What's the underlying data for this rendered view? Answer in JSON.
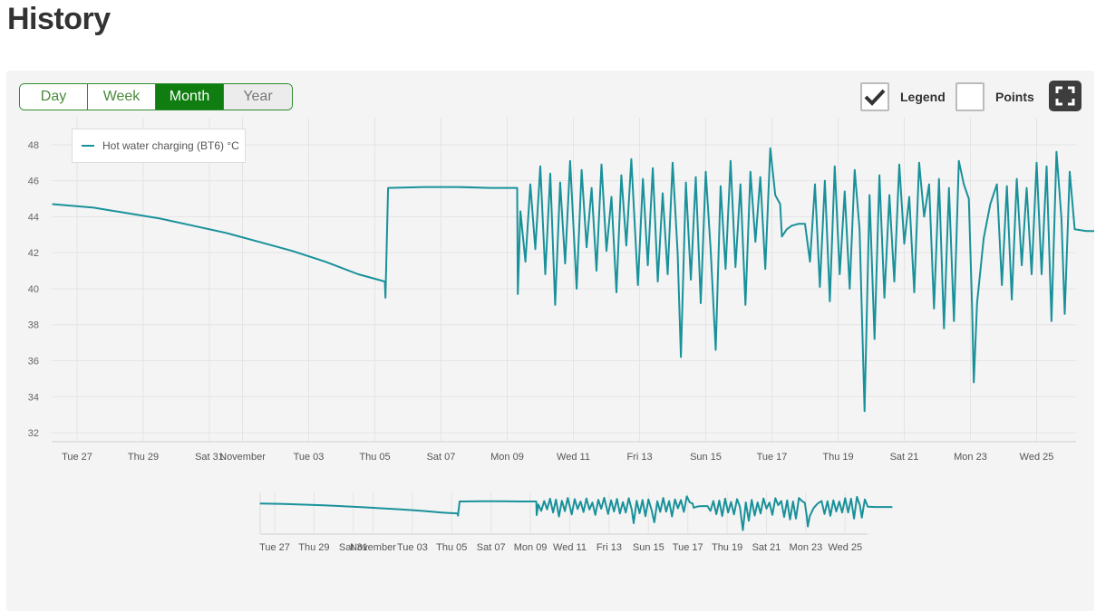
{
  "page": {
    "title": "History"
  },
  "controls": {
    "ranges": [
      {
        "label": "Day",
        "state": "normal"
      },
      {
        "label": "Week",
        "state": "normal"
      },
      {
        "label": "Month",
        "state": "active"
      },
      {
        "label": "Year",
        "state": "muted"
      }
    ],
    "legend_toggle": {
      "label": "Legend",
      "checked": true
    },
    "points_toggle": {
      "label": "Points",
      "checked": false
    },
    "fullscreen_icon": "expand-icon"
  },
  "colors": {
    "series": "#19919a",
    "active_range": "#0f7d0f",
    "grid": "#e4e4e4"
  },
  "chart_data": {
    "type": "line",
    "legend_placement": "top-left",
    "grid": true,
    "ylim": [
      31.5,
      49.5
    ],
    "yticks": [
      32,
      34,
      36,
      38,
      40,
      42,
      44,
      46,
      48
    ],
    "x_start": "Tue 27",
    "xticks": [
      {
        "day": 0,
        "label": "Tue 27"
      },
      {
        "day": 2,
        "label": "Thu 29"
      },
      {
        "day": 4,
        "label": "Sat 31"
      },
      {
        "day": 5,
        "label": "November"
      },
      {
        "day": 7,
        "label": "Tue 03"
      },
      {
        "day": 9,
        "label": "Thu 05"
      },
      {
        "day": 11,
        "label": "Sat 07"
      },
      {
        "day": 13,
        "label": "Mon 09"
      },
      {
        "day": 15,
        "label": "Wed 11"
      },
      {
        "day": 17,
        "label": "Fri 13"
      },
      {
        "day": 19,
        "label": "Sun 15"
      },
      {
        "day": 21,
        "label": "Tue 17"
      },
      {
        "day": 23,
        "label": "Thu 19"
      },
      {
        "day": 25,
        "label": "Sat 21"
      },
      {
        "day": 27,
        "label": "Mon 23"
      },
      {
        "day": 29,
        "label": "Wed 25"
      }
    ],
    "series": [
      {
        "name": "Hot water charging (BT6) °C",
        "points": [
          [
            -0.75,
            44.7
          ],
          [
            0.5,
            44.5
          ],
          [
            1.5,
            44.2
          ],
          [
            2.5,
            43.9
          ],
          [
            3.5,
            43.5
          ],
          [
            4.5,
            43.1
          ],
          [
            5.5,
            42.6
          ],
          [
            6.5,
            42.1
          ],
          [
            7.5,
            41.5
          ],
          [
            8.5,
            40.8
          ],
          [
            9.3,
            40.4
          ],
          [
            9.32,
            39.5
          ],
          [
            9.4,
            45.6
          ],
          [
            10.5,
            45.65
          ],
          [
            11.5,
            45.65
          ],
          [
            12.5,
            45.6
          ],
          [
            13.3,
            45.6
          ],
          [
            13.32,
            39.7
          ],
          [
            13.4,
            44.3
          ],
          [
            13.55,
            41.5
          ],
          [
            13.7,
            45.8
          ],
          [
            13.85,
            42.2
          ],
          [
            14.0,
            46.8
          ],
          [
            14.15,
            40.8
          ],
          [
            14.3,
            46.4
          ],
          [
            14.45,
            39.1
          ],
          [
            14.6,
            45.9
          ],
          [
            14.75,
            41.4
          ],
          [
            14.9,
            47.1
          ],
          [
            15.1,
            40.0
          ],
          [
            15.25,
            46.6
          ],
          [
            15.4,
            42.3
          ],
          [
            15.55,
            45.6
          ],
          [
            15.7,
            41.0
          ],
          [
            15.85,
            46.9
          ],
          [
            16.0,
            42.1
          ],
          [
            16.15,
            45.1
          ],
          [
            16.3,
            39.8
          ],
          [
            16.45,
            46.3
          ],
          [
            16.6,
            42.4
          ],
          [
            16.75,
            47.2
          ],
          [
            16.95,
            40.2
          ],
          [
            17.1,
            46.1
          ],
          [
            17.25,
            41.3
          ],
          [
            17.4,
            46.7
          ],
          [
            17.55,
            40.4
          ],
          [
            17.7,
            45.3
          ],
          [
            17.85,
            40.8
          ],
          [
            18.0,
            47.0
          ],
          [
            18.15,
            42.0
          ],
          [
            18.25,
            36.2
          ],
          [
            18.4,
            45.9
          ],
          [
            18.55,
            40.5
          ],
          [
            18.7,
            46.2
          ],
          [
            18.85,
            39.2
          ],
          [
            19.0,
            46.5
          ],
          [
            19.15,
            42.1
          ],
          [
            19.3,
            36.6
          ],
          [
            19.45,
            45.7
          ],
          [
            19.6,
            41.1
          ],
          [
            19.75,
            47.1
          ],
          [
            19.9,
            41.2
          ],
          [
            20.05,
            45.8
          ],
          [
            20.2,
            39.1
          ],
          [
            20.35,
            46.5
          ],
          [
            20.5,
            42.6
          ],
          [
            20.65,
            46.2
          ],
          [
            20.8,
            41.1
          ],
          [
            20.95,
            47.8
          ],
          [
            21.1,
            45.2
          ],
          [
            21.25,
            44.7
          ],
          [
            21.3,
            42.9
          ],
          [
            21.45,
            43.3
          ],
          [
            21.6,
            43.5
          ],
          [
            21.8,
            43.6
          ],
          [
            22.0,
            43.6
          ],
          [
            22.15,
            41.5
          ],
          [
            22.3,
            45.8
          ],
          [
            22.45,
            40.1
          ],
          [
            22.6,
            46.0
          ],
          [
            22.75,
            39.3
          ],
          [
            22.9,
            46.8
          ],
          [
            23.05,
            40.8
          ],
          [
            23.2,
            45.4
          ],
          [
            23.35,
            40.0
          ],
          [
            23.5,
            46.6
          ],
          [
            23.65,
            43.3
          ],
          [
            23.8,
            33.2
          ],
          [
            23.95,
            45.2
          ],
          [
            24.1,
            37.2
          ],
          [
            24.25,
            46.3
          ],
          [
            24.4,
            39.5
          ],
          [
            24.55,
            45.2
          ],
          [
            24.7,
            40.4
          ],
          [
            24.85,
            46.9
          ],
          [
            25.0,
            42.5
          ],
          [
            25.15,
            45.1
          ],
          [
            25.3,
            39.8
          ],
          [
            25.45,
            47.0
          ],
          [
            25.6,
            44.0
          ],
          [
            25.75,
            45.8
          ],
          [
            25.9,
            38.9
          ],
          [
            26.05,
            46.1
          ],
          [
            26.2,
            37.8
          ],
          [
            26.35,
            45.6
          ],
          [
            26.5,
            38.2
          ],
          [
            26.65,
            47.1
          ],
          [
            26.8,
            45.8
          ],
          [
            26.95,
            45.0
          ],
          [
            27.05,
            39.0
          ],
          [
            27.1,
            34.8
          ],
          [
            27.2,
            39.2
          ],
          [
            27.4,
            42.8
          ],
          [
            27.6,
            44.7
          ],
          [
            27.8,
            45.8
          ],
          [
            27.95,
            40.2
          ],
          [
            28.1,
            45.7
          ],
          [
            28.25,
            39.4
          ],
          [
            28.4,
            46.1
          ],
          [
            28.55,
            41.3
          ],
          [
            28.7,
            45.6
          ],
          [
            28.85,
            40.8
          ],
          [
            29.0,
            47.0
          ],
          [
            29.15,
            40.8
          ],
          [
            29.3,
            46.8
          ],
          [
            29.45,
            38.2
          ],
          [
            29.6,
            47.6
          ],
          [
            29.75,
            43.9
          ],
          [
            29.85,
            38.6
          ],
          [
            30.0,
            46.5
          ],
          [
            30.15,
            43.3
          ],
          [
            30.5,
            43.2
          ],
          [
            31.4,
            43.2
          ]
        ]
      }
    ],
    "navigator": {
      "xticks": [
        {
          "day": 0,
          "label": "Tue 27"
        },
        {
          "day": 2,
          "label": "Thu 29"
        },
        {
          "day": 4,
          "label": "Sat 31"
        },
        {
          "day": 5,
          "label": "November"
        },
        {
          "day": 7,
          "label": "Tue 03"
        },
        {
          "day": 9,
          "label": "Thu 05"
        },
        {
          "day": 11,
          "label": "Sat 07"
        },
        {
          "day": 13,
          "label": "Mon 09"
        },
        {
          "day": 15,
          "label": "Wed 11"
        },
        {
          "day": 17,
          "label": "Fri 13"
        },
        {
          "day": 19,
          "label": "Sun 15"
        },
        {
          "day": 21,
          "label": "Tue 17"
        },
        {
          "day": 23,
          "label": "Thu 19"
        },
        {
          "day": 25,
          "label": "Sat 21"
        },
        {
          "day": 27,
          "label": "Mon 23"
        },
        {
          "day": 29,
          "label": "Wed 25"
        }
      ]
    }
  }
}
